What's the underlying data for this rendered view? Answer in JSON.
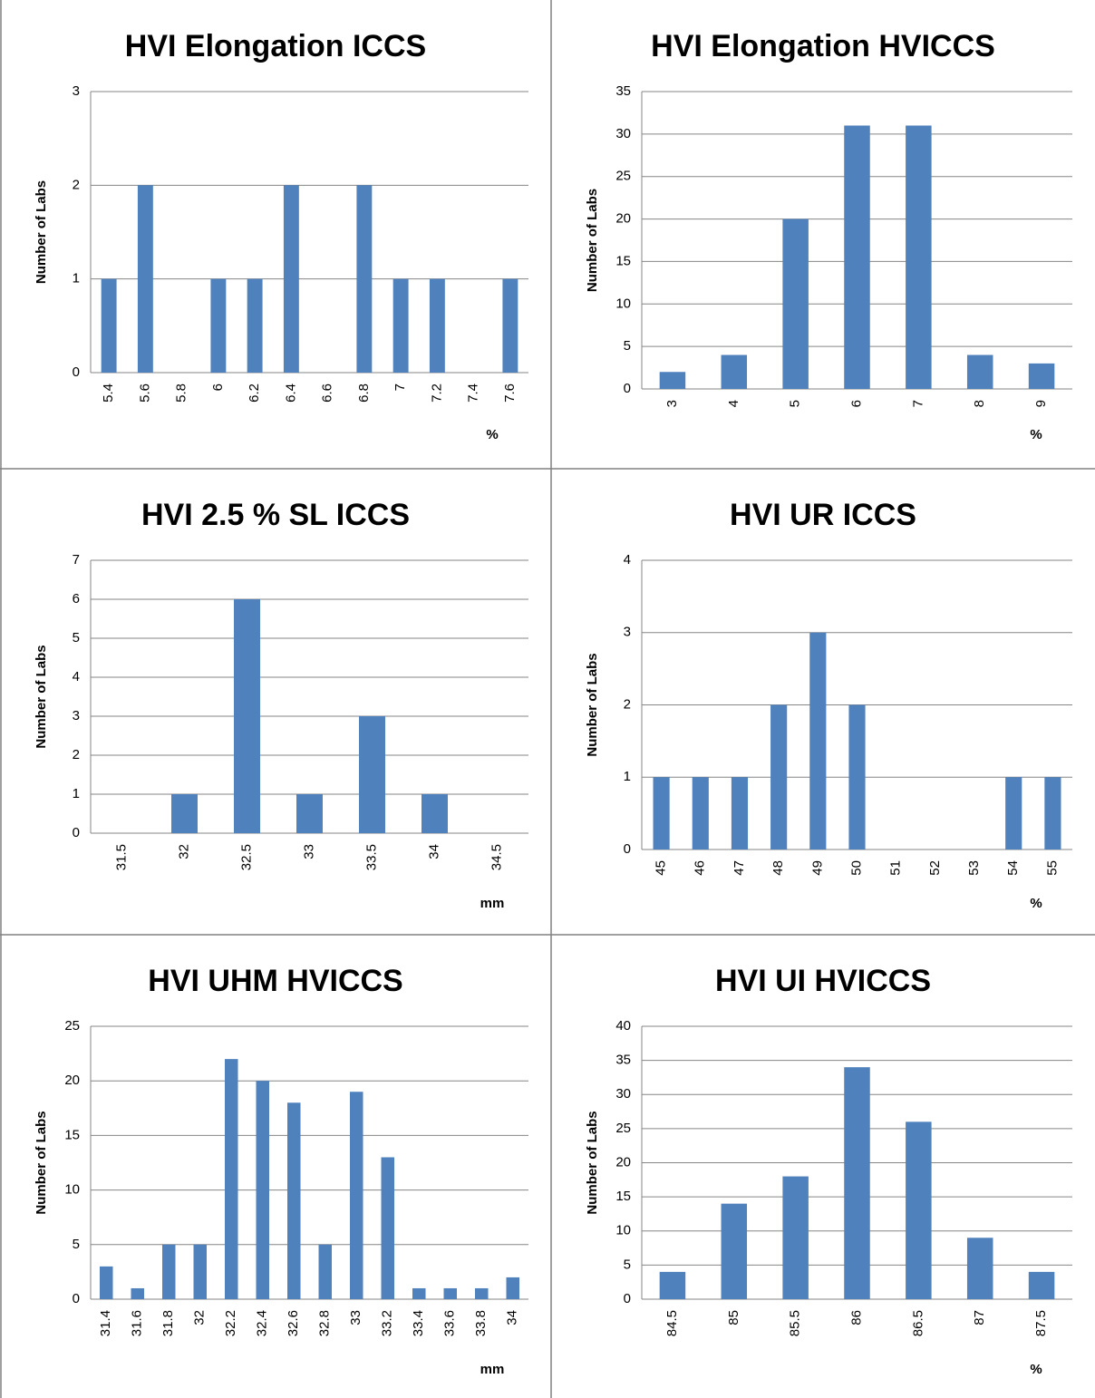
{
  "chart_data": [
    {
      "type": "bar",
      "title": "HVI Elongation ICCS",
      "ylabel": "Number of Labs",
      "xlabel": "%",
      "color": "#4f81bd",
      "grid": true,
      "categories": [
        "5.4",
        "5.6",
        "5.8",
        "6",
        "6.2",
        "6.4",
        "6.6",
        "6.8",
        "7",
        "7.2",
        "7.4",
        "7.6"
      ],
      "values": [
        1,
        2,
        0,
        1,
        1,
        2,
        0,
        2,
        1,
        1,
        0,
        1
      ],
      "ylim": [
        0,
        3
      ],
      "yticks": [
        0,
        1,
        2,
        3
      ]
    },
    {
      "type": "bar",
      "title": "HVI Elongation HVICCS",
      "ylabel": "Number of Labs",
      "xlabel": "%",
      "color": "#4f81bd",
      "grid": true,
      "categories": [
        "3",
        "4",
        "5",
        "6",
        "7",
        "8",
        "9"
      ],
      "values": [
        2,
        4,
        20,
        31,
        31,
        4,
        3
      ],
      "ylim": [
        0,
        35
      ],
      "yticks": [
        0,
        5,
        10,
        15,
        20,
        25,
        30,
        35
      ]
    },
    {
      "type": "bar",
      "title": "HVI 2.5 % SL ICCS",
      "ylabel": "Number of Labs",
      "xlabel": "mm",
      "color": "#4f81bd",
      "grid": true,
      "categories": [
        "31.5",
        "32",
        "32.5",
        "33",
        "33.5",
        "34",
        "34.5"
      ],
      "values": [
        0,
        1,
        6,
        1,
        3,
        1,
        0
      ],
      "ylim": [
        0,
        7
      ],
      "yticks": [
        0,
        1,
        2,
        3,
        4,
        5,
        6,
        7
      ]
    },
    {
      "type": "bar",
      "title": "HVI UR ICCS",
      "ylabel": "Number of Labs",
      "xlabel": "%",
      "color": "#4f81bd",
      "grid": true,
      "categories": [
        "45",
        "46",
        "47",
        "48",
        "49",
        "50",
        "51",
        "52",
        "53",
        "54",
        "55"
      ],
      "values": [
        1,
        1,
        1,
        2,
        3,
        2,
        0,
        0,
        0,
        1,
        1
      ],
      "ylim": [
        0,
        4
      ],
      "yticks": [
        0,
        1,
        2,
        3,
        4
      ]
    },
    {
      "type": "bar",
      "title": "HVI UHM HVICCS",
      "ylabel": "Number of Labs",
      "xlabel": "mm",
      "color": "#4f81bd",
      "grid": true,
      "categories": [
        "31.4",
        "31.6",
        "31.8",
        "32",
        "32.2",
        "32.4",
        "32.6",
        "32.8",
        "33",
        "33.2",
        "33.4",
        "33.6",
        "33.8",
        "34"
      ],
      "values": [
        3,
        1,
        5,
        5,
        22,
        20,
        18,
        5,
        19,
        13,
        1,
        1,
        1,
        2
      ],
      "ylim": [
        0,
        25
      ],
      "yticks": [
        0,
        5,
        10,
        15,
        20,
        25
      ]
    },
    {
      "type": "bar",
      "title": "HVI UI HVICCS",
      "ylabel": "Number of Labs",
      "xlabel": "%",
      "color": "#4f81bd",
      "grid": true,
      "categories": [
        "84.5",
        "85",
        "85.5",
        "86",
        "86.5",
        "87",
        "87.5"
      ],
      "values": [
        4,
        14,
        18,
        34,
        26,
        9,
        4
      ],
      "ylim": [
        0,
        40
      ],
      "yticks": [
        0,
        5,
        10,
        15,
        20,
        25,
        30,
        35,
        40
      ]
    }
  ]
}
